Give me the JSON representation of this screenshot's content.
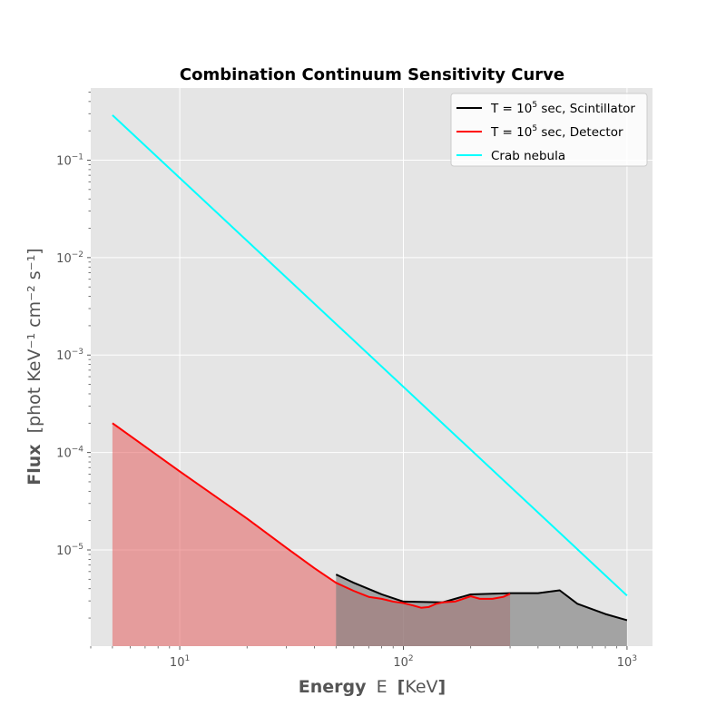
{
  "chart_data": {
    "type": "line",
    "title": "Combination Continuum Sensitivity Curve",
    "xlabel_bold": "Energy",
    "xlabel_rest": "E",
    "xlabel_unit": "KeV",
    "ylabel_bold": "Flux",
    "ylabel_unit": "[phot KeV⁻¹ cm⁻² s⁻¹]",
    "xscale": "log",
    "yscale": "log",
    "xlim": [
      4,
      1300
    ],
    "ylim": [
      1.03e-06,
      0.55
    ],
    "grid": true,
    "legend_position": "upper right",
    "x_ticks": [
      {
        "value": 10,
        "base": "10",
        "exp": "1"
      },
      {
        "value": 100,
        "base": "10",
        "exp": "2"
      },
      {
        "value": 1000,
        "base": "10",
        "exp": "3"
      }
    ],
    "y_ticks": [
      {
        "value": 1e-05,
        "base": "10",
        "exp": "−5"
      },
      {
        "value": 0.0001,
        "base": "10",
        "exp": "−4"
      },
      {
        "value": 0.001,
        "base": "10",
        "exp": "−3"
      },
      {
        "value": 0.01,
        "base": "10",
        "exp": "−2"
      },
      {
        "value": 0.1,
        "base": "10",
        "exp": "−1"
      }
    ],
    "series": [
      {
        "name": "T = 10^5 sec, Scintillator",
        "legend_pre": "T = 10",
        "legend_sup": "5",
        "legend_post": " sec, Scintillator",
        "color": "#000000",
        "fill": "#808080",
        "x": [
          50,
          60,
          80,
          100,
          150,
          200,
          300,
          400,
          500,
          600,
          800,
          1000
        ],
        "y": [
          5.6e-06,
          4.6e-06,
          3.5e-06,
          2.95e-06,
          2.9e-06,
          3.5e-06,
          3.6e-06,
          3.6e-06,
          3.85e-06,
          2.8e-06,
          2.2e-06,
          1.9e-06
        ]
      },
      {
        "name": "T = 10^5 sec, Detector",
        "legend_pre": "T = 10",
        "legend_sup": "5",
        "legend_post": " sec, Detector",
        "color": "#ff0000",
        "fill": "#e56060",
        "x": [
          5,
          10,
          20,
          30,
          40,
          50,
          60,
          70,
          80,
          90,
          100,
          110,
          120,
          130,
          140,
          150,
          170,
          200,
          220,
          250,
          280,
          300
        ],
        "y": [
          0.0002,
          6.4e-05,
          2.1e-05,
          1.05e-05,
          6.5e-06,
          4.6e-06,
          3.8e-06,
          3.3e-06,
          3.15e-06,
          2.95e-06,
          2.85e-06,
          2.7e-06,
          2.55e-06,
          2.6e-06,
          2.8e-06,
          2.9e-06,
          2.95e-06,
          3.35e-06,
          3.15e-06,
          3.15e-06,
          3.3e-06,
          3.55e-06
        ]
      },
      {
        "name": "Crab nebula",
        "legend_pre": "Crab nebula",
        "legend_sup": "",
        "legend_post": "",
        "color": "#00ffff",
        "fill": "",
        "x": [
          5,
          1000
        ],
        "y": [
          0.29,
          3.4e-06
        ]
      }
    ]
  }
}
